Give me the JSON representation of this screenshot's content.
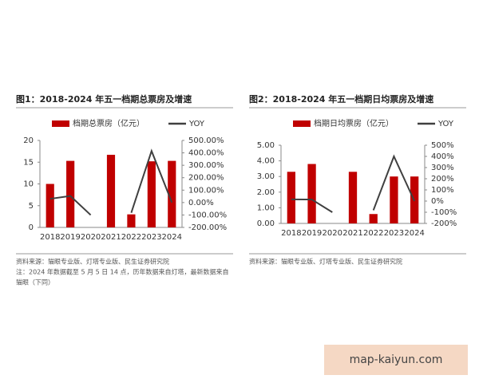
{
  "chart_data": [
    {
      "type": "bar",
      "title": "图1：2018-2024 年五一档期总票房及增速",
      "categories": [
        "2018",
        "2019",
        "2020",
        "2021",
        "2022",
        "2023",
        "2024"
      ],
      "series": [
        {
          "name": "档期总票房（亿元）",
          "type": "bar",
          "color": "#c00000",
          "values": [
            10,
            15.3,
            0,
            16.7,
            3,
            15.2,
            15.3
          ]
        },
        {
          "name": "YOY",
          "type": "line",
          "axis": "y2",
          "color": "#404040",
          "values": [
            30,
            53,
            -100,
            null,
            -82,
            415,
            1
          ]
        }
      ],
      "ylim": [
        0,
        20
      ],
      "yticks": [
        0,
        5,
        10,
        15,
        20
      ],
      "y2lim": [
        -200,
        500
      ],
      "y2ticks": [
        {
          "value": -200,
          "label": "-200.00%"
        },
        {
          "value": -100,
          "label": "-100.00%"
        },
        {
          "value": 0,
          "label": "0.00%"
        },
        {
          "value": 100,
          "label": "100.00%"
        },
        {
          "value": 200,
          "label": "200.00%"
        },
        {
          "value": 300,
          "label": "300.00%"
        },
        {
          "value": 400,
          "label": "400.00%"
        },
        {
          "value": 500,
          "label": "500.00%"
        }
      ],
      "notes": [
        "资料来源：猫眼专业版、灯塔专业版、民生证券研究院",
        "注：2024 年数据截至 5 月 5 日 14 点，历年数据来自灯塔，最新数据来自",
        "猫眼（下同）"
      ]
    },
    {
      "type": "bar",
      "title": "图2：2018-2024 年五一档期日均票房及增速",
      "categories": [
        "2018",
        "2019",
        "2020",
        "2021",
        "2022",
        "2023",
        "2024"
      ],
      "series": [
        {
          "name": "档期日均票房（亿元）",
          "type": "bar",
          "color": "#c00000",
          "values": [
            3.3,
            3.8,
            0,
            3.3,
            0.6,
            3.0,
            3.0
          ]
        },
        {
          "name": "YOY",
          "type": "line",
          "axis": "y2",
          "color": "#404040",
          "values": [
            15,
            14,
            -100,
            null,
            -82,
            400,
            0
          ]
        }
      ],
      "ylim": [
        0,
        5
      ],
      "yticks": [
        {
          "value": 0,
          "label": "0.00"
        },
        {
          "value": 1,
          "label": "1.00"
        },
        {
          "value": 2,
          "label": "2.00"
        },
        {
          "value": 3,
          "label": "3.00"
        },
        {
          "value": 4,
          "label": "4.00"
        },
        {
          "value": 5,
          "label": "5.00"
        }
      ],
      "y2lim": [
        -200,
        500
      ],
      "y2ticks": [
        {
          "value": -200,
          "label": "-200%"
        },
        {
          "value": -100,
          "label": "-100%"
        },
        {
          "value": 0,
          "label": "0%"
        },
        {
          "value": 100,
          "label": "100%"
        },
        {
          "value": 200,
          "label": "200%"
        },
        {
          "value": 300,
          "label": "300%"
        },
        {
          "value": 400,
          "label": "400%"
        },
        {
          "value": 500,
          "label": "500%"
        }
      ],
      "notes": [
        "资料来源：猫眼专业版、灯塔专业版、民生证券研究院"
      ]
    }
  ],
  "watermark": "map-kaiyun.com"
}
